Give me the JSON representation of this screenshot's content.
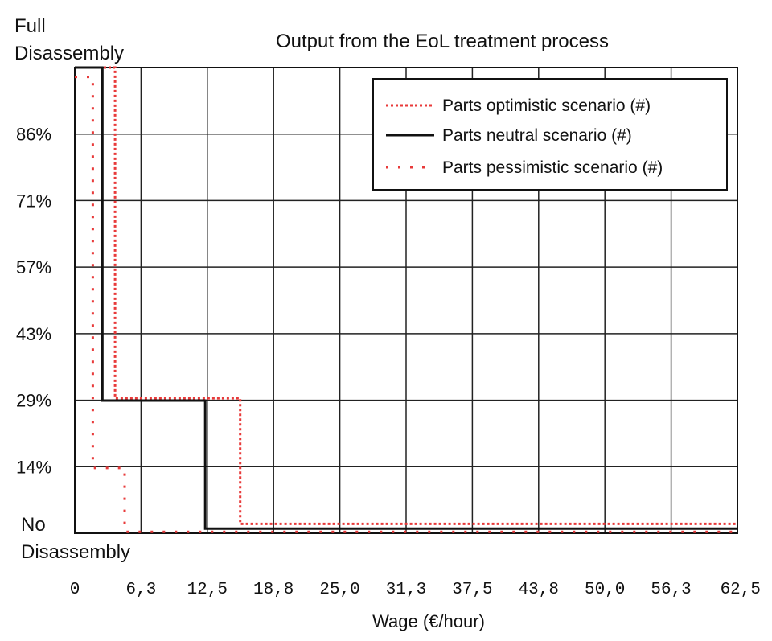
{
  "chart_data": {
    "type": "line",
    "title": "Output from the EoL treatment process",
    "xlabel": "Wage (€/hour)",
    "y_top_label": [
      "Full",
      "Disassembly"
    ],
    "y_bottom_label": [
      "No",
      "Disassembly"
    ],
    "x_ticks": [
      "0",
      "6,3",
      "12,5",
      "18,8",
      "25,0",
      "31,3",
      "37,5",
      "43,8",
      "50,0",
      "56,3",
      "62,5"
    ],
    "y_ticks": [
      "86%",
      "71%",
      "57%",
      "43%",
      "29%",
      "14%"
    ],
    "xlim": [
      0,
      62.5
    ],
    "ylim": [
      0,
      100
    ],
    "grid": true,
    "legend_position": "top-right",
    "legend_entries": [
      "Parts optimistic scenario (#)",
      "Parts neutral scenario (#)",
      "Parts pessimistic scenario (#)"
    ],
    "series": [
      {
        "name": "Parts optimistic scenario (#)",
        "style": "dotted",
        "color": "#e83a3a",
        "x": [
          0,
          3.8,
          3.8,
          15.6,
          15.6,
          62.5
        ],
        "y": [
          100,
          100,
          29,
          29,
          2,
          2
        ]
      },
      {
        "name": "Parts neutral scenario (#)",
        "style": "solid",
        "color": "#111111",
        "x": [
          0,
          2.6,
          2.6,
          12.3,
          12.3,
          62.5
        ],
        "y": [
          100,
          100,
          28.5,
          28.5,
          1,
          1
        ]
      },
      {
        "name": "Parts pessimistic scenario (#)",
        "style": "dotted-sparse",
        "color": "#e83a3a",
        "x": [
          0,
          1.7,
          1.7,
          4.7,
          4.7,
          62.5
        ],
        "y": [
          98,
          98,
          14,
          14,
          0.3,
          0.3
        ]
      }
    ]
  }
}
